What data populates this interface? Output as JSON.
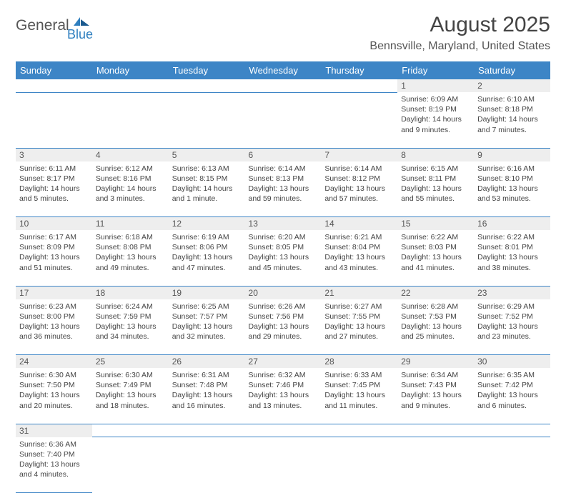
{
  "logo": {
    "general": "General",
    "blue": "Blue"
  },
  "title": "August 2025",
  "location": "Bennsville, Maryland, United States",
  "colors": {
    "header_bg": "#3d85c6",
    "header_text": "#ffffff",
    "daynum_bg": "#eeeeee",
    "border": "#3d85c6",
    "text": "#444444",
    "logo_gray": "#555555",
    "logo_blue": "#2f7fbf"
  },
  "weekdays": [
    "Sunday",
    "Monday",
    "Tuesday",
    "Wednesday",
    "Thursday",
    "Friday",
    "Saturday"
  ],
  "weeks": [
    {
      "nums": [
        "",
        "",
        "",
        "",
        "",
        "1",
        "2"
      ],
      "cells": [
        null,
        null,
        null,
        null,
        null,
        {
          "sr": "Sunrise: 6:09 AM",
          "ss": "Sunset: 8:19 PM",
          "dl1": "Daylight: 14 hours",
          "dl2": "and 9 minutes."
        },
        {
          "sr": "Sunrise: 6:10 AM",
          "ss": "Sunset: 8:18 PM",
          "dl1": "Daylight: 14 hours",
          "dl2": "and 7 minutes."
        }
      ]
    },
    {
      "nums": [
        "3",
        "4",
        "5",
        "6",
        "7",
        "8",
        "9"
      ],
      "cells": [
        {
          "sr": "Sunrise: 6:11 AM",
          "ss": "Sunset: 8:17 PM",
          "dl1": "Daylight: 14 hours",
          "dl2": "and 5 minutes."
        },
        {
          "sr": "Sunrise: 6:12 AM",
          "ss": "Sunset: 8:16 PM",
          "dl1": "Daylight: 14 hours",
          "dl2": "and 3 minutes."
        },
        {
          "sr": "Sunrise: 6:13 AM",
          "ss": "Sunset: 8:15 PM",
          "dl1": "Daylight: 14 hours",
          "dl2": "and 1 minute."
        },
        {
          "sr": "Sunrise: 6:14 AM",
          "ss": "Sunset: 8:13 PM",
          "dl1": "Daylight: 13 hours",
          "dl2": "and 59 minutes."
        },
        {
          "sr": "Sunrise: 6:14 AM",
          "ss": "Sunset: 8:12 PM",
          "dl1": "Daylight: 13 hours",
          "dl2": "and 57 minutes."
        },
        {
          "sr": "Sunrise: 6:15 AM",
          "ss": "Sunset: 8:11 PM",
          "dl1": "Daylight: 13 hours",
          "dl2": "and 55 minutes."
        },
        {
          "sr": "Sunrise: 6:16 AM",
          "ss": "Sunset: 8:10 PM",
          "dl1": "Daylight: 13 hours",
          "dl2": "and 53 minutes."
        }
      ]
    },
    {
      "nums": [
        "10",
        "11",
        "12",
        "13",
        "14",
        "15",
        "16"
      ],
      "cells": [
        {
          "sr": "Sunrise: 6:17 AM",
          "ss": "Sunset: 8:09 PM",
          "dl1": "Daylight: 13 hours",
          "dl2": "and 51 minutes."
        },
        {
          "sr": "Sunrise: 6:18 AM",
          "ss": "Sunset: 8:08 PM",
          "dl1": "Daylight: 13 hours",
          "dl2": "and 49 minutes."
        },
        {
          "sr": "Sunrise: 6:19 AM",
          "ss": "Sunset: 8:06 PM",
          "dl1": "Daylight: 13 hours",
          "dl2": "and 47 minutes."
        },
        {
          "sr": "Sunrise: 6:20 AM",
          "ss": "Sunset: 8:05 PM",
          "dl1": "Daylight: 13 hours",
          "dl2": "and 45 minutes."
        },
        {
          "sr": "Sunrise: 6:21 AM",
          "ss": "Sunset: 8:04 PM",
          "dl1": "Daylight: 13 hours",
          "dl2": "and 43 minutes."
        },
        {
          "sr": "Sunrise: 6:22 AM",
          "ss": "Sunset: 8:03 PM",
          "dl1": "Daylight: 13 hours",
          "dl2": "and 41 minutes."
        },
        {
          "sr": "Sunrise: 6:22 AM",
          "ss": "Sunset: 8:01 PM",
          "dl1": "Daylight: 13 hours",
          "dl2": "and 38 minutes."
        }
      ]
    },
    {
      "nums": [
        "17",
        "18",
        "19",
        "20",
        "21",
        "22",
        "23"
      ],
      "cells": [
        {
          "sr": "Sunrise: 6:23 AM",
          "ss": "Sunset: 8:00 PM",
          "dl1": "Daylight: 13 hours",
          "dl2": "and 36 minutes."
        },
        {
          "sr": "Sunrise: 6:24 AM",
          "ss": "Sunset: 7:59 PM",
          "dl1": "Daylight: 13 hours",
          "dl2": "and 34 minutes."
        },
        {
          "sr": "Sunrise: 6:25 AM",
          "ss": "Sunset: 7:57 PM",
          "dl1": "Daylight: 13 hours",
          "dl2": "and 32 minutes."
        },
        {
          "sr": "Sunrise: 6:26 AM",
          "ss": "Sunset: 7:56 PM",
          "dl1": "Daylight: 13 hours",
          "dl2": "and 29 minutes."
        },
        {
          "sr": "Sunrise: 6:27 AM",
          "ss": "Sunset: 7:55 PM",
          "dl1": "Daylight: 13 hours",
          "dl2": "and 27 minutes."
        },
        {
          "sr": "Sunrise: 6:28 AM",
          "ss": "Sunset: 7:53 PM",
          "dl1": "Daylight: 13 hours",
          "dl2": "and 25 minutes."
        },
        {
          "sr": "Sunrise: 6:29 AM",
          "ss": "Sunset: 7:52 PM",
          "dl1": "Daylight: 13 hours",
          "dl2": "and 23 minutes."
        }
      ]
    },
    {
      "nums": [
        "24",
        "25",
        "26",
        "27",
        "28",
        "29",
        "30"
      ],
      "cells": [
        {
          "sr": "Sunrise: 6:30 AM",
          "ss": "Sunset: 7:50 PM",
          "dl1": "Daylight: 13 hours",
          "dl2": "and 20 minutes."
        },
        {
          "sr": "Sunrise: 6:30 AM",
          "ss": "Sunset: 7:49 PM",
          "dl1": "Daylight: 13 hours",
          "dl2": "and 18 minutes."
        },
        {
          "sr": "Sunrise: 6:31 AM",
          "ss": "Sunset: 7:48 PM",
          "dl1": "Daylight: 13 hours",
          "dl2": "and 16 minutes."
        },
        {
          "sr": "Sunrise: 6:32 AM",
          "ss": "Sunset: 7:46 PM",
          "dl1": "Daylight: 13 hours",
          "dl2": "and 13 minutes."
        },
        {
          "sr": "Sunrise: 6:33 AM",
          "ss": "Sunset: 7:45 PM",
          "dl1": "Daylight: 13 hours",
          "dl2": "and 11 minutes."
        },
        {
          "sr": "Sunrise: 6:34 AM",
          "ss": "Sunset: 7:43 PM",
          "dl1": "Daylight: 13 hours",
          "dl2": "and 9 minutes."
        },
        {
          "sr": "Sunrise: 6:35 AM",
          "ss": "Sunset: 7:42 PM",
          "dl1": "Daylight: 13 hours",
          "dl2": "and 6 minutes."
        }
      ]
    },
    {
      "nums": [
        "31",
        "",
        "",
        "",
        "",
        "",
        ""
      ],
      "cells": [
        {
          "sr": "Sunrise: 6:36 AM",
          "ss": "Sunset: 7:40 PM",
          "dl1": "Daylight: 13 hours",
          "dl2": "and 4 minutes."
        },
        null,
        null,
        null,
        null,
        null,
        null
      ]
    }
  ]
}
